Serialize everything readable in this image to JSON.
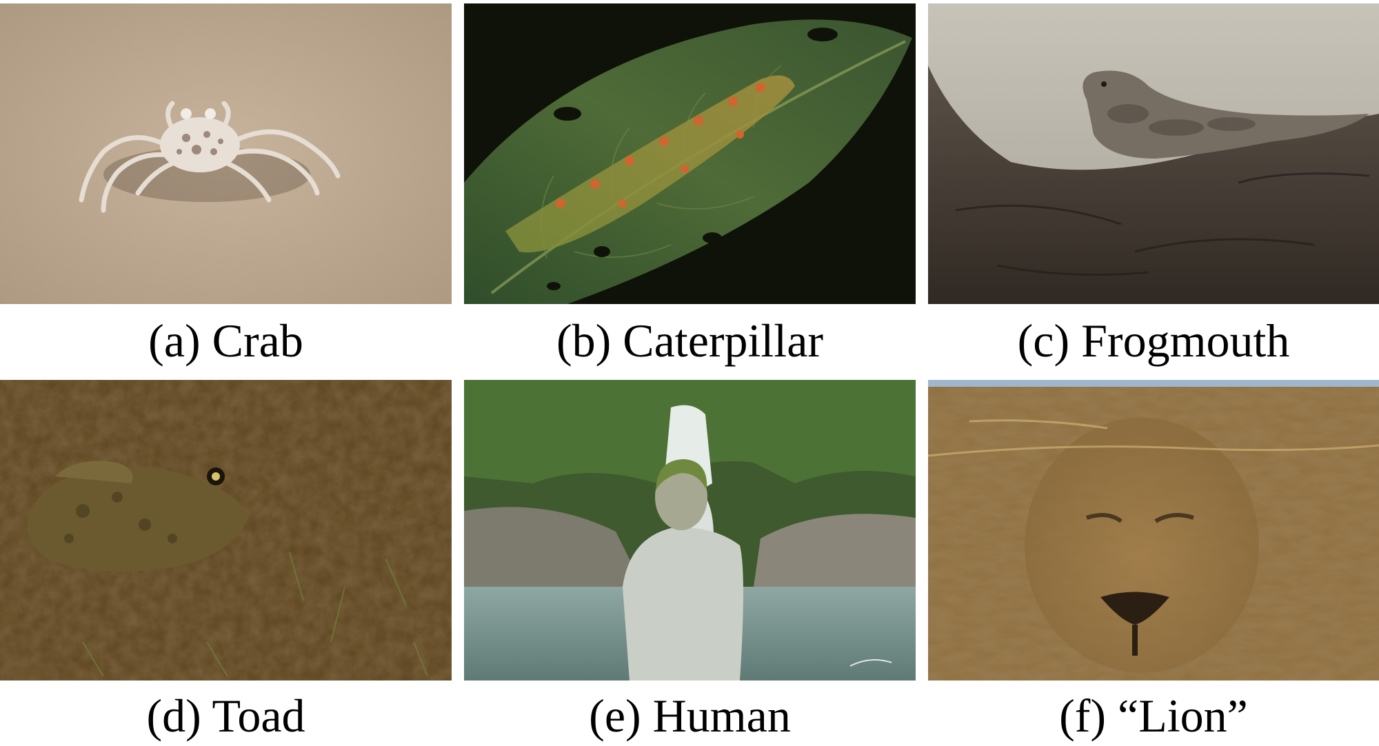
{
  "figure": {
    "panels": [
      {
        "id": "a",
        "caption": "(a) Crab",
        "subject": "crab on sand"
      },
      {
        "id": "b",
        "caption": "(b) Caterpillar",
        "subject": "caterpillar on leaf"
      },
      {
        "id": "c",
        "caption": "(c) Frogmouth",
        "subject": "frogmouth on branch"
      },
      {
        "id": "d",
        "caption": "(d) Toad",
        "subject": "toad on ground"
      },
      {
        "id": "e",
        "caption": "(e) Human",
        "subject": "body-painted human at waterfall"
      },
      {
        "id": "f",
        "caption": "(f) “Lion”",
        "subject": "lion face in rock cliff"
      }
    ]
  }
}
